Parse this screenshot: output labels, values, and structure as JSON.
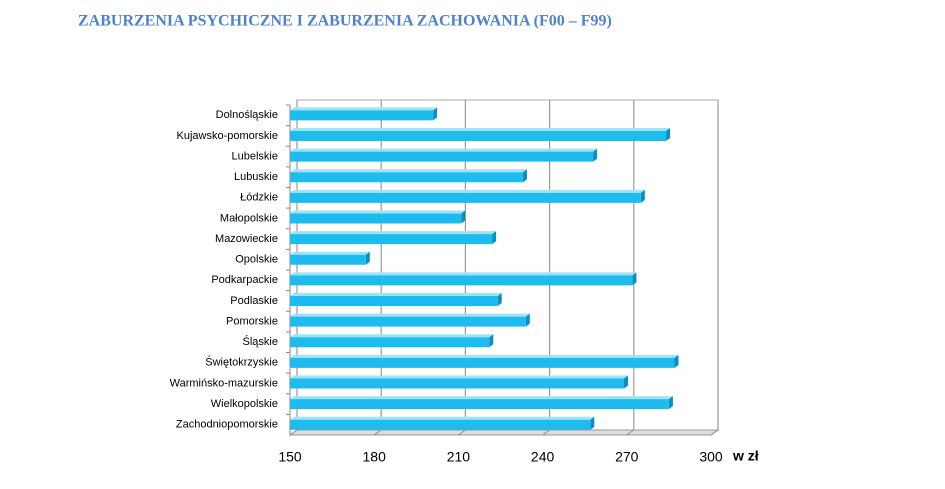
{
  "chart_data": {
    "type": "bar",
    "orientation": "horizontal",
    "title": "ZABURZENIA PSYCHICZNE I ZABURZENIA ZACHOWANIA (F00 – F99)",
    "x_label": "w zł",
    "categories": [
      "Dolnośląskie",
      "Kujawsko-pomorskie",
      "Lubelskie",
      "Lubuskie",
      "Łódzkie",
      "Małopolskie",
      "Mazowieckie",
      "Opolskie",
      "Podkarpackie",
      "Podlaskie",
      "Pomorskie",
      "Śląskie",
      "Świętokrzyskie",
      "Warmińsko-mazurskie",
      "Wielkopolskie",
      "Zachodniopomorskie"
    ],
    "values": [
      201,
      284,
      258,
      233,
      275,
      211,
      222,
      177,
      272,
      224,
      234,
      221,
      287,
      269,
      285,
      257
    ],
    "color": "#1ebbef",
    "xlim": [
      150,
      300
    ],
    "xticks": [
      150,
      180,
      210,
      240,
      270,
      300
    ],
    "grid": true
  }
}
